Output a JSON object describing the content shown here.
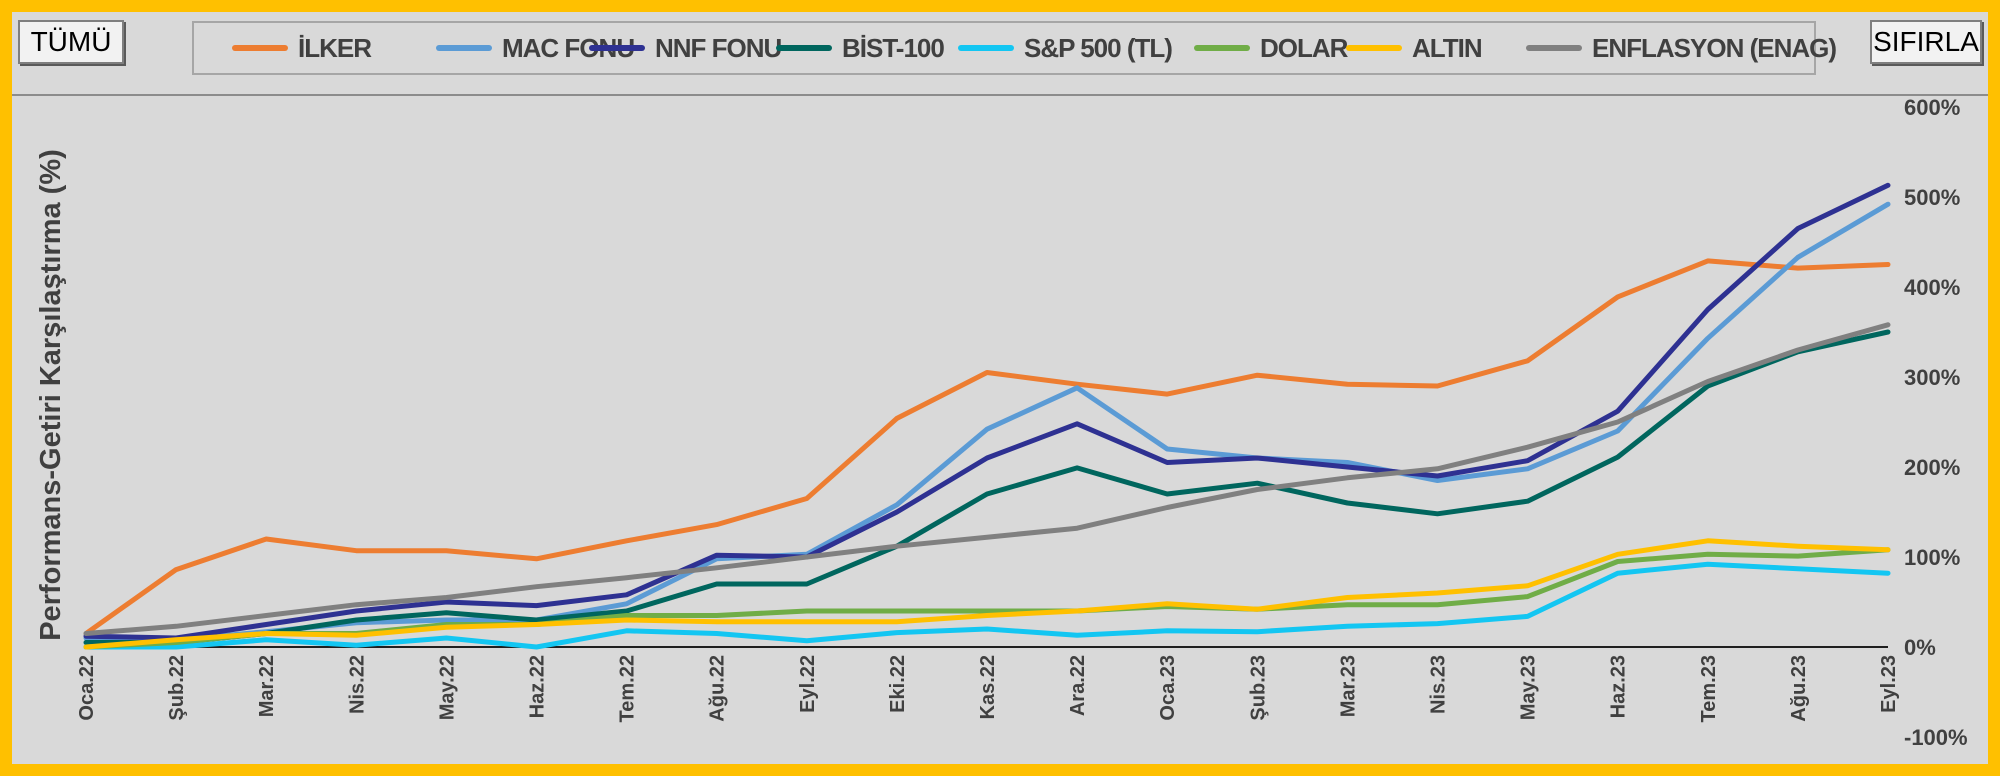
{
  "controls": {
    "all_label": "TÜMÜ",
    "reset_label": "SIFIRLA"
  },
  "chart_data": {
    "type": "line",
    "title": "",
    "xlabel": "",
    "ylabel": "Performans-Getiri Karşılaştırma (%)",
    "ylim": [
      -100,
      600
    ],
    "yticks": [
      -100,
      0,
      100,
      200,
      300,
      400,
      500,
      600
    ],
    "ytick_labels": [
      "-100%",
      "0%",
      "100%",
      "200%",
      "300%",
      "400%",
      "500%",
      "600%"
    ],
    "y_axis_side": "right",
    "legend_position": "top",
    "grid": false,
    "categories": [
      "Oca.22",
      "Şub.22",
      "Mar.22",
      "Nis.22",
      "May.22",
      "Haz.22",
      "Tem.22",
      "Ağu.22",
      "Eyl.22",
      "Eki.22",
      "Kas.22",
      "Ara.22",
      "Oca.23",
      "Şub.23",
      "Mar.23",
      "Nis.23",
      "May.23",
      "Haz.23",
      "Tem.23",
      "Ağu.23",
      "Eyl.23"
    ],
    "series": [
      {
        "name": "İLKER",
        "color": "#ED7D31",
        "values": [
          15,
          86,
          120,
          107,
          107,
          98,
          118,
          136,
          165,
          254,
          305,
          292,
          281,
          302,
          292,
          290,
          318,
          389,
          429,
          421,
          425
        ]
      },
      {
        "name": "MAC FONU",
        "color": "#5B9BD5",
        "values": [
          10,
          8,
          17,
          27,
          30,
          30,
          48,
          98,
          103,
          158,
          242,
          288,
          220,
          210,
          205,
          185,
          198,
          240,
          343,
          433,
          492
        ]
      },
      {
        "name": "NNF FONU",
        "color": "#2E3192",
        "values": [
          12,
          10,
          25,
          40,
          50,
          46,
          58,
          102,
          100,
          150,
          210,
          248,
          205,
          210,
          200,
          190,
          207,
          262,
          375,
          465,
          513
        ]
      },
      {
        "name": "BİST-100",
        "color": "#00665E",
        "values": [
          5,
          5,
          15,
          30,
          38,
          30,
          40,
          70,
          70,
          112,
          170,
          199,
          170,
          182,
          160,
          148,
          162,
          211,
          290,
          328,
          350
        ]
      },
      {
        "name": "S&P 500 (TL)",
        "color": "#13C6F2",
        "values": [
          0,
          0,
          8,
          2,
          10,
          0,
          18,
          15,
          7,
          16,
          20,
          13,
          18,
          17,
          23,
          26,
          34,
          82,
          92,
          87,
          82
        ]
      },
      {
        "name": "DOLAR",
        "color": "#70AD47",
        "values": [
          0,
          5,
          15,
          15,
          25,
          25,
          35,
          35,
          40,
          40,
          40,
          40,
          45,
          42,
          47,
          47,
          56,
          95,
          103,
          101,
          108
        ]
      },
      {
        "name": "ALTIN",
        "color": "#FFC000",
        "values": [
          0,
          8,
          15,
          13,
          22,
          25,
          30,
          28,
          28,
          28,
          35,
          40,
          48,
          42,
          55,
          60,
          68,
          103,
          118,
          112,
          108
        ]
      },
      {
        "name": "ENFLASYON (ENAG)",
        "color": "#808080",
        "values": [
          15,
          23,
          35,
          47,
          55,
          67,
          77,
          88,
          100,
          112,
          122,
          132,
          155,
          175,
          188,
          198,
          222,
          250,
          295,
          330,
          358
        ]
      }
    ]
  }
}
